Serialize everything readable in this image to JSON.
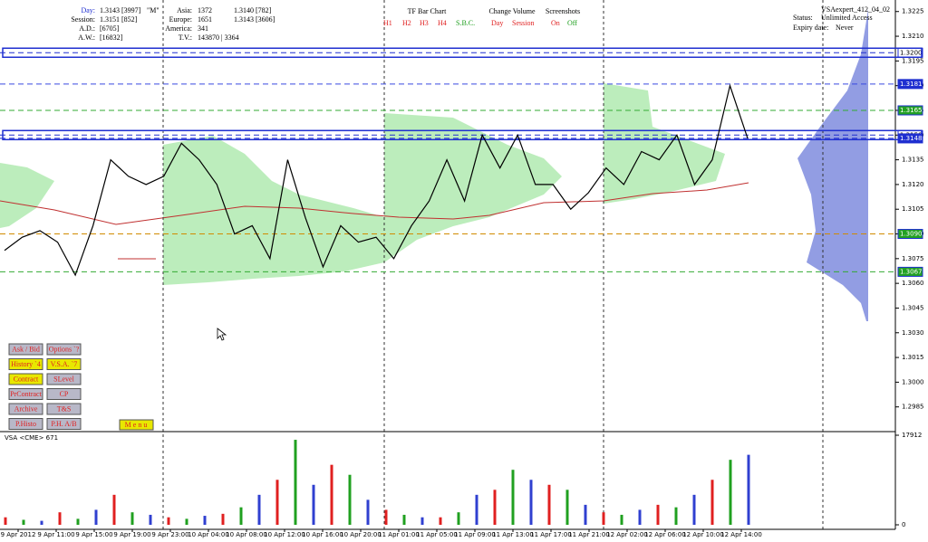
{
  "info": {
    "rows": [
      {
        "label": "Day:",
        "value": "1.3143 [3997]"
      },
      {
        "label": "Session:",
        "value": "1.3151 [852]"
      },
      {
        "label": "A.D.:",
        "value": "[6705]"
      },
      {
        "label": "A.W.:",
        "value": "[16832]"
      }
    ],
    "mode": "\"M\"",
    "regions": [
      {
        "label": "Asia:",
        "count": "1372",
        "value": "1.3140 [782]"
      },
      {
        "label": "Europe:",
        "count": "1651",
        "value": "1.3143 [3606]"
      },
      {
        "label": "America:",
        "count": "341"
      },
      {
        "label": "T.V.:",
        "count": "143870 | 3364"
      }
    ]
  },
  "tf_bar_chart": {
    "title": "TF Bar Chart",
    "options": [
      "H1",
      "H2",
      "H3",
      "H4",
      "S.B.C."
    ]
  },
  "change_volume": {
    "title": "Change Volume",
    "options": [
      "Day",
      "Session"
    ]
  },
  "screenshots": {
    "title": "Screenshots",
    "options": [
      "On",
      "Off"
    ]
  },
  "license": {
    "name": "VSAexpert_412_04_02",
    "status_label": "Status:",
    "status": "Unlimited Access",
    "expiry_label": "Expiry date:",
    "expiry": "Never"
  },
  "buttons": [
    {
      "label": "Ask / Bid",
      "style": "gray"
    },
    {
      "label": "Options `?",
      "style": "gray"
    },
    {
      "label": "History `4",
      "style": "yellow"
    },
    {
      "label": "V.S.A. `7",
      "style": "yellow"
    },
    {
      "label": "Contract",
      "style": "yellow"
    },
    {
      "label": "SLevel",
      "style": "gray"
    },
    {
      "label": "PrContract",
      "style": "gray"
    },
    {
      "label": "CP",
      "style": "gray"
    },
    {
      "label": "Archive",
      "style": "gray"
    },
    {
      "label": "T&S",
      "style": "gray"
    },
    {
      "label": "P.Histo",
      "style": "gray"
    },
    {
      "label": "P.H. A/B",
      "style": "gray"
    }
  ],
  "menu": "M e n u",
  "price_chart": {
    "ylim": [
      1.297,
      1.3232
    ],
    "yticks": [
      1.3225,
      {
        "value": 1.321,
        "label": "1.3210"
      },
      1.3195,
      {
        "value": 1.318,
        "label": "1.3180"
      },
      1.3165,
      {
        "value": 1.315,
        "label": "1.3150"
      },
      1.3135,
      {
        "value": 1.312,
        "label": "1.3120"
      },
      1.3105,
      {
        "value": 1.309,
        "label": "1.3090"
      },
      1.3075,
      {
        "value": 1.306,
        "label": "1.3060"
      },
      1.3045,
      {
        "value": 1.303,
        "label": "1.3030"
      },
      1.3015,
      {
        "value": 1.3,
        "label": "1.3000"
      },
      1.2985
    ],
    "levels": [
      {
        "value": {
          "value": 1.32,
          "label": "1.3200"
        },
        "color": "#1f2fd0",
        "fill": "#ffffff"
      },
      {
        "value": 1.3181,
        "color": "#3a4ae0",
        "fill": "#1f2fd0"
      },
      {
        "value": 1.3165,
        "color": "#33aa33",
        "fill": "#22a022"
      },
      {
        "value": {
          "value": 1.315,
          "label": "1.3150"
        },
        "color": "#1f2fd0",
        "fill": "#ffffff"
      },
      {
        "value": 1.3148,
        "color": "#1f2fd0",
        "fill": "#1f2fd0"
      },
      {
        "value": {
          "value": 1.309,
          "label": "1.3090"
        },
        "color": "#d08a00",
        "fill": "#22a022"
      },
      {
        "value": 1.3067,
        "color": "#33aa33",
        "fill": "#22a022"
      }
    ],
    "close": [
      1.308,
      1.3088,
      1.3092,
      1.3085,
      1.3065,
      1.3095,
      1.3135,
      1.3125,
      1.312,
      1.3125,
      1.3145,
      1.3135,
      1.312,
      1.309,
      1.3095,
      1.3075,
      1.3135,
      1.31,
      1.307,
      1.3095,
      1.3085,
      1.3088,
      1.3075,
      1.3095,
      1.311,
      1.3135,
      1.311,
      1.315,
      1.313,
      1.315,
      1.312,
      1.312,
      1.3105,
      1.3115,
      1.313,
      1.312,
      1.314,
      1.3135,
      1.315,
      1.312,
      1.3135,
      1.318,
      1.3148
    ],
    "time_labels": [
      "9 Apr 2012",
      "9 Apr 11:00",
      "9 Apr 15:00",
      "9 Apr 19:00",
      "9 Apr 23:00",
      "10 Apr 04:00",
      "10 Apr 08:00",
      "10 Apr 12:00",
      "10 Apr 16:00",
      "10 Apr 20:00",
      "11 Apr 01:00",
      "11 Apr 05:00",
      "11 Apr 09:00",
      "11 Apr 13:00",
      "11 Apr 17:00",
      "11 Apr 21:00",
      "12 Apr 02:00",
      "12 Apr 06:00",
      "12 Apr 10:00",
      "12 Apr 14:00"
    ]
  },
  "volume_panel": {
    "label": "VSA <CME> 671",
    "ylim": [
      0,
      17912
    ],
    "yticks": [
      0,
      17912
    ],
    "values": [
      1500,
      1000,
      800,
      2500,
      1200,
      3000,
      6000,
      2500,
      2000,
      1500,
      1200,
      1800,
      2200,
      3500,
      6000,
      9000,
      17000,
      8000,
      12000,
      10000,
      5000,
      3000,
      2000,
      1500,
      1500,
      2500,
      6000,
      7000,
      11000,
      9000,
      8000,
      7000,
      4000,
      2500,
      2000,
      3000,
      4000,
      3500,
      6000,
      9000,
      13000,
      14000
    ]
  }
}
